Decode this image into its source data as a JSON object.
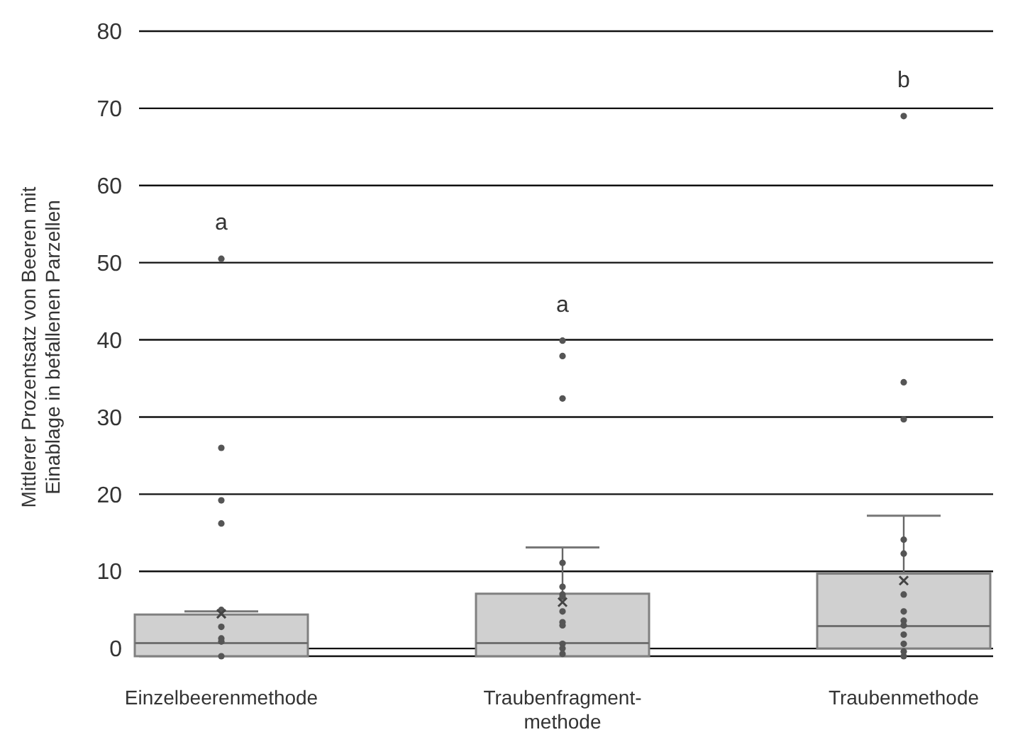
{
  "chart_data": {
    "type": "box",
    "ylabel": "Mittlerer Prozentsatz von Beeren mit\nEinablage in befallenen Parzellen",
    "categories": [
      "Einzelbeerenmethode",
      "Traubenfragment-\nmethode",
      "Traubenmethode"
    ],
    "boxes": [
      {
        "low": -1,
        "q1": -1,
        "median": 0.7,
        "q3": 4.4,
        "high": 4.8,
        "mean": 4.5,
        "outliers": [
          50.5,
          26,
          19.2,
          16.2,
          5,
          2.8,
          1.3,
          0.9,
          -1
        ]
      },
      {
        "low": -1,
        "q1": -1,
        "median": 0.7,
        "q3": 7.1,
        "high": 13.1,
        "mean": 6.0,
        "outliers": [
          39.9,
          37.9,
          32.4,
          11.1,
          8,
          7,
          6.7,
          4.8,
          3.4,
          3,
          0.6,
          0,
          -0.7
        ]
      },
      {
        "low": -1,
        "q1": 0,
        "median": 2.9,
        "q3": 9.7,
        "high": 17.2,
        "mean": 8.8,
        "outliers": [
          69,
          34.5,
          29.7,
          14.1,
          12.3,
          7,
          4.8,
          3.6,
          3,
          1.8,
          0.6,
          -0.4,
          -1
        ]
      }
    ],
    "color": "#d0d0d0",
    "ylim": [
      -1,
      80
    ],
    "yticks": [
      0,
      10,
      20,
      30,
      40,
      50,
      60,
      70,
      80
    ],
    "grid": "y",
    "annotations": [
      "a",
      "a",
      "b"
    ]
  }
}
